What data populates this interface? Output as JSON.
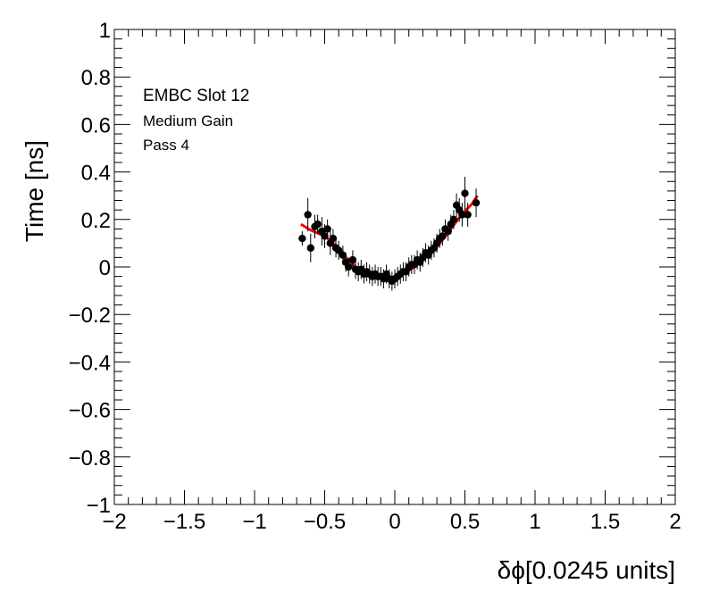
{
  "chart_data": {
    "type": "scatter",
    "xlabel": "δϕ[0.0245 units]",
    "ylabel": "Time [ns]",
    "xlim": [
      -2,
      2
    ],
    "ylim": [
      -1,
      1
    ],
    "xticks": [
      -2,
      -1.5,
      -1,
      -0.5,
      0,
      0.5,
      1,
      1.5,
      2
    ],
    "xtick_labels": [
      "−2",
      "−1.5",
      "−1",
      "−0.5",
      "0",
      "0.5",
      "1",
      "1.5",
      "2"
    ],
    "yticks": [
      1,
      0.8,
      0.6,
      0.4,
      0.2,
      0,
      -0.2,
      -0.4,
      -0.6,
      -0.8,
      -1
    ],
    "ytick_labels": [
      "1",
      "0.8",
      "0.6",
      "0.4",
      "0.2",
      "0",
      "−0.2",
      "−0.4",
      "−0.6",
      "−0.8",
      "−1"
    ],
    "grid": false,
    "annotations": [
      "EMBC Slot 12",
      "Medium Gain",
      "Pass 4"
    ],
    "points": {
      "x": [
        -0.66,
        -0.62,
        -0.6,
        -0.57,
        -0.55,
        -0.52,
        -0.5,
        -0.48,
        -0.46,
        -0.44,
        -0.42,
        -0.4,
        -0.37,
        -0.35,
        -0.33,
        -0.3,
        -0.28,
        -0.26,
        -0.24,
        -0.22,
        -0.2,
        -0.18,
        -0.16,
        -0.14,
        -0.12,
        -0.1,
        -0.08,
        -0.06,
        -0.04,
        -0.02,
        0,
        0.02,
        0.04,
        0.06,
        0.08,
        0.1,
        0.12,
        0.14,
        0.16,
        0.18,
        0.2,
        0.22,
        0.24,
        0.26,
        0.28,
        0.3,
        0.32,
        0.34,
        0.36,
        0.38,
        0.4,
        0.42,
        0.44,
        0.46,
        0.48,
        0.5,
        0.52,
        0.58
      ],
      "y": [
        0.12,
        0.22,
        0.08,
        0.17,
        0.18,
        0.15,
        0.13,
        0.16,
        0.1,
        0.12,
        0.08,
        0.07,
        0.05,
        0.02,
        0.0,
        0.03,
        -0.01,
        -0.02,
        -0.01,
        -0.03,
        -0.02,
        -0.03,
        -0.04,
        -0.03,
        -0.04,
        -0.04,
        -0.05,
        -0.03,
        -0.05,
        -0.06,
        -0.05,
        -0.04,
        -0.03,
        -0.02,
        -0.02,
        0.0,
        0.01,
        0.01,
        0.03,
        0.02,
        0.04,
        0.06,
        0.05,
        0.07,
        0.08,
        0.1,
        0.12,
        0.13,
        0.16,
        0.15,
        0.18,
        0.2,
        0.26,
        0.24,
        0.22,
        0.31,
        0.22,
        0.27
      ],
      "yerr": [
        0.03,
        0.07,
        0.06,
        0.05,
        0.04,
        0.06,
        0.05,
        0.04,
        0.05,
        0.04,
        0.04,
        0.04,
        0.04,
        0.04,
        0.04,
        0.04,
        0.04,
        0.04,
        0.04,
        0.04,
        0.04,
        0.04,
        0.04,
        0.04,
        0.04,
        0.04,
        0.04,
        0.04,
        0.04,
        0.04,
        0.04,
        0.04,
        0.04,
        0.04,
        0.04,
        0.04,
        0.04,
        0.04,
        0.04,
        0.04,
        0.04,
        0.04,
        0.04,
        0.04,
        0.04,
        0.04,
        0.04,
        0.04,
        0.04,
        0.04,
        0.04,
        0.04,
        0.05,
        0.05,
        0.05,
        0.07,
        0.05,
        0.06
      ]
    },
    "fit": {
      "color": "#ff0000",
      "x": [
        -0.67,
        -0.6,
        -0.5,
        -0.42,
        -0.35,
        -0.28,
        -0.22,
        -0.15,
        -0.08,
        -0.02,
        0.0,
        0.05,
        0.1,
        0.15,
        0.2,
        0.25,
        0.3,
        0.35,
        0.4,
        0.45,
        0.5,
        0.55,
        0.59
      ],
      "y": [
        0.18,
        0.155,
        0.13,
        0.09,
        0.04,
        0.0,
        -0.02,
        -0.03,
        -0.04,
        -0.05,
        -0.05,
        -0.035,
        -0.015,
        0.005,
        0.03,
        0.055,
        0.085,
        0.12,
        0.16,
        0.2,
        0.235,
        0.265,
        0.3
      ]
    },
    "marker_color": "#000000"
  }
}
